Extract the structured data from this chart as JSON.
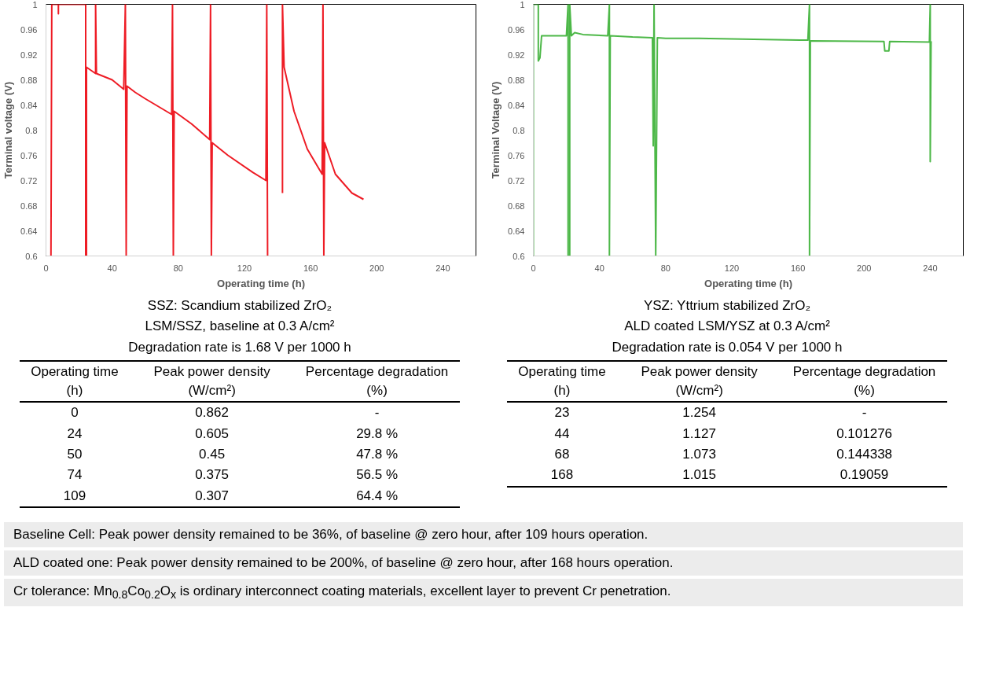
{
  "chart_data": [
    {
      "type": "line",
      "xlabel": "Operating time (h)",
      "ylabel": "Terminal voltage (V)",
      "xlim": [
        0,
        260
      ],
      "ylim": [
        0.6,
        1
      ],
      "xticks": [
        0,
        40,
        80,
        120,
        160,
        200,
        240
      ],
      "yticks": [
        0.6,
        0.64,
        0.68,
        0.72,
        0.76,
        0.8,
        0.84,
        0.88,
        0.92,
        0.96,
        1
      ],
      "grid": false,
      "series": [
        {
          "color": "#ee1c25",
          "x": [
            3,
            3.5,
            7.5,
            7.5,
            7.5,
            24,
            24,
            24.5,
            24.5,
            30,
            30,
            30.5,
            40,
            47,
            48,
            48.5,
            49,
            54,
            60,
            76,
            76.5,
            77,
            77.5,
            88,
            99,
            99.5,
            100,
            100.5,
            110,
            125,
            133,
            133.5,
            134,
            138,
            143,
            143,
            144,
            150,
            158,
            167,
            167.5,
            168,
            168.5,
            175,
            185,
            192
          ],
          "values": [
            0.6,
            1,
            1,
            0.985,
            1,
            1,
            0.6,
            0.6,
            0.9,
            0.89,
            1,
            0.89,
            0.88,
            0.865,
            1,
            0.6,
            0.87,
            0.86,
            0.85,
            0.825,
            1,
            0.6,
            0.83,
            0.81,
            0.785,
            1,
            0.6,
            0.78,
            0.76,
            0.733,
            0.72,
            1,
            0.6,
            null,
            0.7,
            1,
            0.9,
            0.83,
            0.77,
            0.73,
            1,
            0.6,
            0.78,
            0.73,
            0.7,
            0.69
          ]
        }
      ],
      "annotations": [
        "SSZ: Scandium stabilized ZrO₂",
        "LSM/SSZ, baseline at 0.3 A/cm²",
        "Degradation rate is 1.68 V per 1000 h",
        "Operating time (h)",
        "Peak power density (W/cm²)",
        "Percentage degradation (%)",
        "0",
        "0.862",
        "-",
        "24",
        "0.605",
        "29.8 %",
        "50",
        "0.45",
        "47.8 %",
        "74",
        "0.375",
        "56.5 %",
        "109",
        "0.307",
        "64.4 %"
      ]
    },
    {
      "type": "line",
      "xlabel": "Operating time (h)",
      "ylabel": "Terminal Voltage (V)",
      "xlim": [
        0,
        260
      ],
      "ylim": [
        0.6,
        1
      ],
      "xticks": [
        0,
        40,
        80,
        120,
        160,
        200,
        240
      ],
      "yticks": [
        0.6,
        0.64,
        0.68,
        0.72,
        0.76,
        0.8,
        0.84,
        0.88,
        0.92,
        0.96,
        1
      ],
      "grid": false,
      "series": [
        {
          "color": "#4db848",
          "x": [
            0,
            0,
            3,
            3,
            4,
            5,
            20,
            21,
            21,
            22,
            22,
            23,
            25,
            30,
            45,
            46,
            46,
            46.5,
            60,
            72,
            72.5,
            73,
            74,
            75,
            80,
            100,
            140,
            166,
            167,
            167,
            167.5,
            212,
            212.5,
            215,
            215.5,
            239.5,
            240,
            240,
            240.5,
            241
          ],
          "values": [
            0.6,
            1,
            1,
            0.91,
            0.915,
            0.95,
            0.95,
            1,
            0.6,
            0.6,
            1,
            0.95,
            0.955,
            0.952,
            0.95,
            1,
            0.6,
            0.95,
            0.948,
            0.947,
            0.775,
            1,
            0.6,
            0.947,
            0.946,
            0.946,
            0.944,
            0.943,
            1,
            0.6,
            0.942,
            0.941,
            0.926,
            0.926,
            0.941,
            0.94,
            1,
            0.75,
            0.94,
            0.94
          ]
        }
      ],
      "annotations": [
        "YSZ: Yttrium stabilized ZrO₂",
        "ALD coated LSM/YSZ at 0.3 A/cm²",
        "Degradation rate is 0.054 V per 1000 h",
        "Operating time (h)",
        "Peak power density (W/cm²)",
        "Percentage degradation (%)",
        "23",
        "1.254",
        "-",
        "44",
        "1.127",
        "0.101276",
        "68",
        "1.073",
        "0.144338",
        "168",
        "1.015",
        "0.19059"
      ]
    },
    {
      "type": "other",
      "annotations": [
        "Baseline Cell: Peak power density remained to be 36%, of baseline @ zero hour, after 109 hours operation.",
        "ALD coated one: Peak power density remained to be 200%, of baseline @ zero hour, after 168 hours operation.",
        "Cr tolerance: Mn$_{0.8}$Co$_{0.2}$O$_{x}$ is ordinary interconnect coating materials, excellent layer to prevent Cr penetration."
      ]
    }
  ]
}
